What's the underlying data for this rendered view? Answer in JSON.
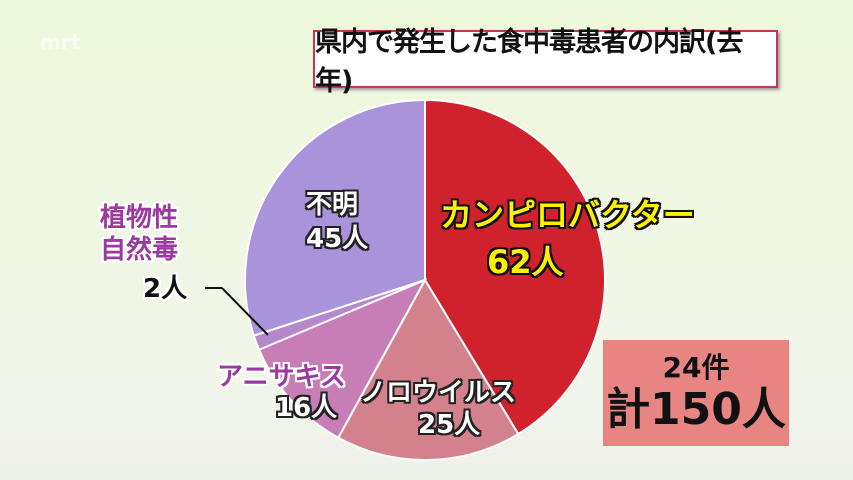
{
  "logo": "mrt",
  "chart_data": {
    "type": "pie",
    "title": "県内で発生した食中毒患者の内訳(去年)",
    "slices": [
      {
        "label": "カンピロバクター",
        "value": 62,
        "value_label": "62人",
        "color": "#d0222d"
      },
      {
        "label": "ノロウイルス",
        "value": 25,
        "value_label": "25人",
        "color": "#d4818e"
      },
      {
        "label": "アニサキス",
        "value": 16,
        "value_label": "16人",
        "color": "#c77eb6"
      },
      {
        "label": "植物性自然毒",
        "value": 2,
        "value_label": "2人",
        "color": "#b588cc"
      },
      {
        "label": "不明",
        "value": 45,
        "value_label": "45人",
        "color": "#a994dc"
      }
    ],
    "start": "top",
    "direction": "clockwise"
  },
  "plant_line1": "植物性",
  "plant_line2": "自然毒",
  "summary": {
    "cases": "24件",
    "total": "計150人"
  }
}
